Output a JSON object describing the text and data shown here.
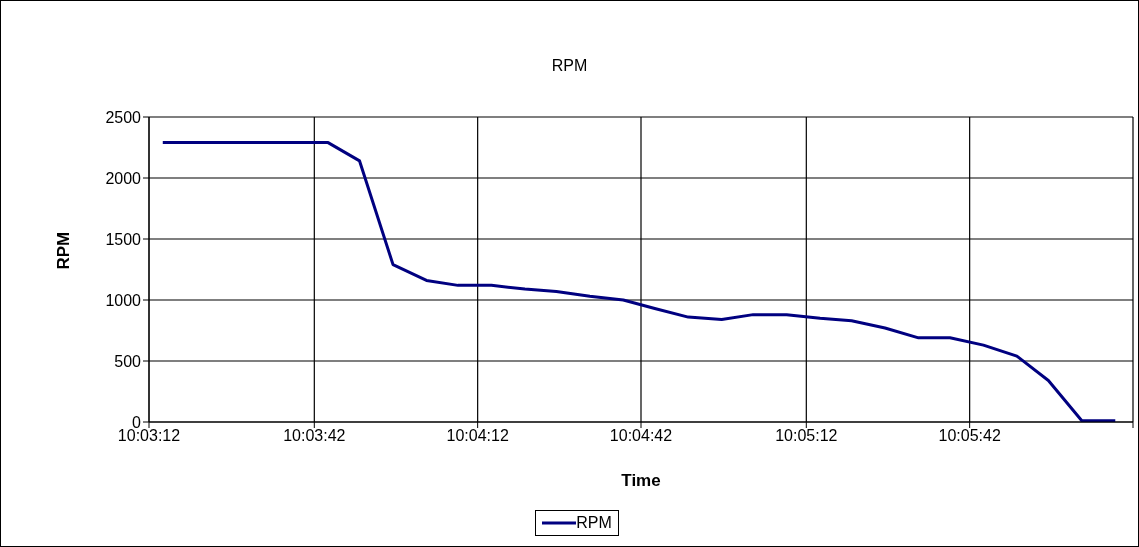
{
  "chart_data": {
    "type": "line",
    "title": "RPM",
    "xlabel": "Time",
    "ylabel": "RPM",
    "x": [
      10.054,
      10.0557,
      10.0574,
      10.059,
      10.0607,
      10.0624,
      10.064,
      10.0657,
      10.0674,
      10.069,
      10.0707,
      10.0724,
      10.074,
      10.0757,
      10.0774,
      10.079,
      10.0807,
      10.0824,
      10.084,
      10.0857,
      10.0874,
      10.089,
      10.0907,
      10.0924,
      10.094,
      10.0957,
      10.0974,
      10.099,
      10.1007,
      10.1024
    ],
    "series": [
      {
        "name": "RPM",
        "color": "#000080",
        "values": [
          2290,
          2290,
          2290,
          2290,
          2290,
          2290,
          2140,
          1290,
          1160,
          1120,
          1120,
          1090,
          1070,
          1030,
          1000,
          930,
          860,
          840,
          880,
          880,
          850,
          830,
          770,
          690,
          690,
          630,
          540,
          340,
          10,
          10
        ]
      }
    ],
    "xlim": [
      10.0533,
      10.1033
    ],
    "xticks": [
      {
        "value": 10.0533,
        "label": "10:03:12"
      },
      {
        "value": 10.0617,
        "label": "10:03:42"
      },
      {
        "value": 10.07,
        "label": "10:04:12"
      },
      {
        "value": 10.0783,
        "label": "10:04:42"
      },
      {
        "value": 10.0867,
        "label": "10:05:12"
      },
      {
        "value": 10.095,
        "label": "10:05:42"
      },
      {
        "value": 10.1033,
        "label": null
      }
    ],
    "ylim": [
      0,
      2500
    ],
    "yticks": [
      0,
      500,
      1000,
      1500,
      2000,
      2500
    ],
    "grid": true,
    "legend": "bottom",
    "marker": "none",
    "line_style": "solid"
  }
}
